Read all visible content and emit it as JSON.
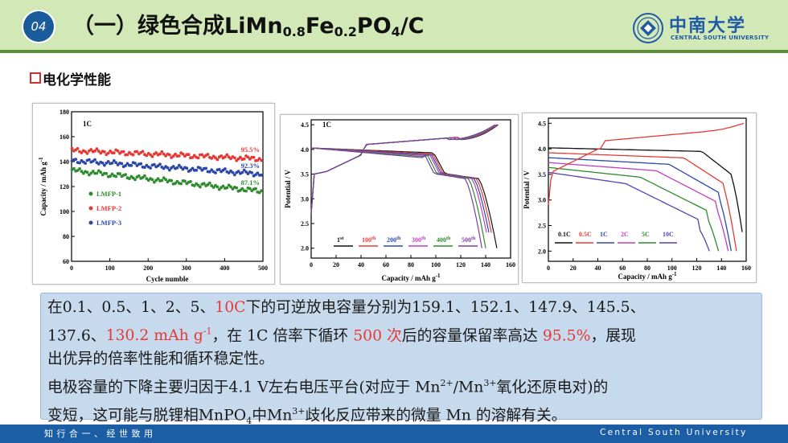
{
  "header": {
    "slide_number": "04",
    "title_prefix": "（一）绿色合成LiMn",
    "title_sub1": "0.8",
    "title_mid": "Fe",
    "title_sub2": "0.2",
    "title_mid2": "PO",
    "title_sub3": "4",
    "title_suffix": "/C",
    "logo_cn": "中南大学",
    "logo_en": "CENTRAL SOUTH UNIVERSITY"
  },
  "section": {
    "title": "电化学性能"
  },
  "chart_data": [
    {
      "type": "scatter",
      "annotation": "1C",
      "xlabel": "Cycle numble",
      "ylabel": "Capacity / mAh g",
      "ylabel_sup": "-1",
      "xlim": [
        0,
        500
      ],
      "ylim": [
        60,
        180
      ],
      "xticks": [
        0,
        100,
        200,
        300,
        400,
        500
      ],
      "yticks": [
        60,
        80,
        100,
        120,
        140,
        160,
        180
      ],
      "series": [
        {
          "name": "LMFP-1",
          "color": "#2e8b2e",
          "start": 133,
          "end": 116,
          "retention": "87.1%"
        },
        {
          "name": "LMFP-2",
          "color": "#e53935",
          "start": 149,
          "end": 142,
          "retention": "95.5%"
        },
        {
          "name": "LMFP-3",
          "color": "#2b48a8",
          "start": 141,
          "end": 130,
          "retention": "92.3%"
        }
      ]
    },
    {
      "type": "line",
      "annotation": "1C",
      "xlabel": "Capacity / mAh g",
      "xlabel_sup": "-1",
      "ylabel": "Potential / V",
      "xlim": [
        0,
        160
      ],
      "ylim": [
        1.8,
        4.6
      ],
      "xticks": [
        0,
        20,
        40,
        60,
        80,
        100,
        120,
        140,
        160
      ],
      "yticks": [
        2.0,
        2.5,
        3.0,
        3.5,
        4.0,
        4.5
      ],
      "series": [
        {
          "name": "1",
          "sup": "st",
          "color": "#111111",
          "capacity": 149
        },
        {
          "name": "100",
          "sup": "th",
          "color": "#e53935",
          "capacity": 147
        },
        {
          "name": "200",
          "sup": "th",
          "color": "#2b48a8",
          "capacity": 145
        },
        {
          "name": "300",
          "sup": "th",
          "color": "#c03fc0",
          "capacity": 143
        },
        {
          "name": "400",
          "sup": "th",
          "color": "#2e8b2e",
          "capacity": 140
        },
        {
          "name": "500",
          "sup": "th",
          "color": "#7b3fa0",
          "capacity": 137
        }
      ]
    },
    {
      "type": "line",
      "xlabel": "Capacity / mAh g",
      "xlabel_sup": "-1",
      "ylabel": "Potential / V",
      "xlim": [
        0,
        160
      ],
      "ylim": [
        1.8,
        4.6
      ],
      "xticks": [
        0,
        20,
        40,
        60,
        80,
        100,
        120,
        140,
        160
      ],
      "yticks": [
        2.0,
        2.5,
        3.0,
        3.5,
        4.0,
        4.5
      ],
      "series": [
        {
          "name": "0.1C",
          "color": "#111111",
          "capacity": 159.1
        },
        {
          "name": "0.5C",
          "color": "#e53935",
          "capacity": 152.1
        },
        {
          "name": "1C",
          "color": "#2b48a8",
          "capacity": 147.9
        },
        {
          "name": "2C",
          "color": "#c03fc0",
          "capacity": 145.5
        },
        {
          "name": "5C",
          "color": "#2e8b2e",
          "capacity": 137.6
        },
        {
          "name": "10C",
          "color": "#5a3fb0",
          "capacity": 130.2
        }
      ]
    }
  ],
  "text": {
    "l1a": "在0.1、0.5、1、2、5、",
    "l1b": "10C",
    "l1c": "下的可逆放电容量分别为159.1、152.1、147.9、145.5、",
    "l2a": "137.6、",
    "l2b": "130.2 mAh g",
    "l2b_sup": "-1",
    "l2c": "，在 1C 倍率下循环 ",
    "l2d": "500 次",
    "l2e": "后的容量保留率高达 ",
    "l2f": "95.5%",
    "l2g": "，展现",
    "l3": "出优异的倍率性能和循环稳定性。",
    "l4a": "电极容量的下降主要归因于4.1 V左右电压平台(对应于 Mn",
    "l4b": "2+",
    "l4c": "/Mn",
    "l4d": "3+",
    "l4e": "氧化还原电对)的",
    "l5a": "变短，这可能与脱锂相MnPO",
    "l5b": "4",
    "l5c": "中Mn",
    "l5d": "3+",
    "l5e": "歧化反应带来的微量 Mn 的溶解有关。"
  },
  "footer": {
    "motto": "知行合一、经世致用",
    "university": "Central South University"
  }
}
